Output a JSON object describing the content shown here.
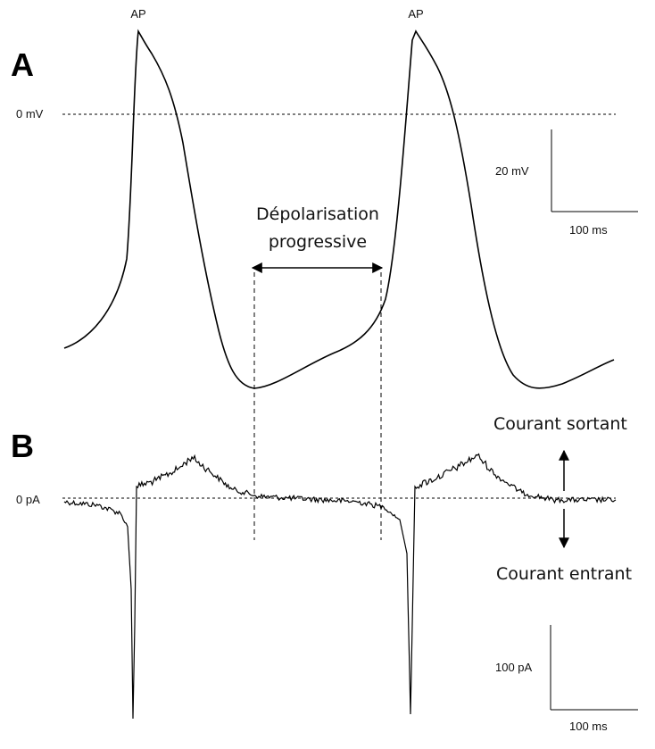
{
  "panel_a": {
    "label": "A",
    "peak_labels": [
      "AP",
      "AP"
    ],
    "zero_label": "0 mV",
    "scale_y": "20 mV",
    "scale_x": "100 ms",
    "annotation": [
      "Dépolarisation",
      "progressive"
    ]
  },
  "panel_b": {
    "label": "B",
    "zero_label": "0 pA",
    "outward": "Courant sortant",
    "inward": "Courant entrant",
    "scale_y": "100 pA",
    "scale_x": "100 ms"
  }
}
